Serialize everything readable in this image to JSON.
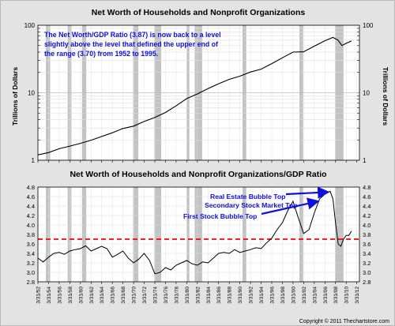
{
  "chart_data": [
    {
      "type": "line",
      "title": "Net Worth of Households and Nonprofit Organizations",
      "ylabel_left": "Trillions of Dollars",
      "ylabel_right": "Trillions of Dollars",
      "yscale": "log",
      "ylim": [
        1,
        100
      ],
      "y_ticks": [
        "1",
        "10",
        "100"
      ],
      "xlim": [
        1952.0,
        2012.5
      ],
      "grid": true,
      "annotation": "The Net Worth/GDP Ratio (3.87) is now back to a level slightly above the level that defined the upper end of the range (3.70) from 1952 to 1995.",
      "annotation_lines": [
        "The Net Worth/GDP Ratio (3.87) is now back to a level",
        "slightly above the level that defined the upper end of",
        "the range (3.70) from 1952 to 1995."
      ],
      "annotation_color": "#1010dd",
      "line_color": "#000000",
      "x": [
        1952,
        1954,
        1956,
        1958,
        1960,
        1962,
        1964,
        1966,
        1968,
        1970,
        1972,
        1974,
        1976,
        1978,
        1980,
        1982,
        1984,
        1986,
        1988,
        1990,
        1992,
        1994,
        1996,
        1998,
        2000,
        2002,
        2004,
        2006,
        2007.5,
        2008.5,
        2009.2,
        2010,
        2011
      ],
      "values": [
        1.2,
        1.3,
        1.48,
        1.62,
        1.78,
        1.98,
        2.25,
        2.55,
        2.95,
        3.2,
        3.75,
        4.3,
        5.1,
        6.4,
        8.2,
        9.6,
        11.5,
        13.6,
        15.8,
        17.6,
        20.3,
        22.4,
        27.0,
        33.0,
        40.0,
        40.5,
        49.0,
        59.0,
        66.0,
        60.0,
        50.0,
        54.0,
        58.5
      ]
    },
    {
      "type": "line",
      "title": "Net Worth of Households and Nonprofit Organizations/GDP Ratio",
      "ylim": [
        2.8,
        4.8
      ],
      "y_ticks": [
        "2.8",
        "3.0",
        "3.2",
        "3.4",
        "3.6",
        "3.8",
        "4.0",
        "4.2",
        "4.4",
        "4.6",
        "4.8"
      ],
      "xlim": [
        1952.0,
        2012.5
      ],
      "grid": true,
      "reference_line": {
        "value": 3.7,
        "style": "dashed",
        "color": "#ff0000"
      },
      "annotations": [
        {
          "text": "Real Estate Bubble Top",
          "points_to": [
            2007.2,
            4.71
          ],
          "color": "#1010dd"
        },
        {
          "text": "Secondary Stock Market Top",
          "points_to": [
            2005.0,
            4.55
          ],
          "color": "#1010dd"
        },
        {
          "text": "First Stock Bubble Top",
          "points_to": [
            1999.8,
            4.5
          ],
          "color": "#1010dd"
        }
      ],
      "x_tick_labels": [
        "3/31/52",
        "3/31/54",
        "3/31/56",
        "3/31/58",
        "3/31/60",
        "3/31/62",
        "3/31/64",
        "3/31/66",
        "3/31/68",
        "3/31/70",
        "3/31/72",
        "3/31/74",
        "3/31/76",
        "3/31/78",
        "3/31/80",
        "3/31/82",
        "3/31/84",
        "3/31/86",
        "3/31/88",
        "3/31/90",
        "3/31/92",
        "3/31/94",
        "3/31/96",
        "3/31/98",
        "3/31/00",
        "3/31/02",
        "3/31/04",
        "3/31/06",
        "3/31/08",
        "3/31/10",
        "3/31/12"
      ],
      "line_color": "#000000",
      "x": [
        1952,
        1953,
        1954,
        1955,
        1956,
        1957,
        1958,
        1959,
        1960,
        1961,
        1962,
        1963,
        1964,
        1965,
        1966,
        1967,
        1968,
        1969,
        1970,
        1971,
        1972,
        1973,
        1974,
        1975,
        1976,
        1977,
        1978,
        1979,
        1980,
        1981,
        1982,
        1983,
        1984,
        1985,
        1986,
        1987,
        1988,
        1989,
        1990,
        1991,
        1992,
        1993,
        1994,
        1995,
        1996,
        1997,
        1998,
        1999,
        2000,
        2001,
        2002,
        2003,
        2004,
        2005,
        2006,
        2006.5,
        2007,
        2007.5,
        2008,
        2008.5,
        2009,
        2009.5,
        2010,
        2010.5,
        2011
      ],
      "values": [
        3.3,
        3.22,
        3.32,
        3.4,
        3.42,
        3.38,
        3.45,
        3.48,
        3.5,
        3.56,
        3.45,
        3.5,
        3.55,
        3.5,
        3.32,
        3.38,
        3.45,
        3.3,
        3.2,
        3.28,
        3.4,
        3.25,
        2.97,
        3.0,
        3.1,
        3.05,
        3.15,
        3.2,
        3.25,
        3.18,
        3.15,
        3.22,
        3.2,
        3.3,
        3.4,
        3.42,
        3.4,
        3.48,
        3.42,
        3.45,
        3.48,
        3.52,
        3.5,
        3.62,
        3.72,
        3.9,
        4.05,
        4.3,
        4.5,
        4.15,
        3.82,
        3.9,
        4.25,
        4.55,
        4.65,
        4.69,
        4.71,
        4.55,
        4.05,
        3.6,
        3.55,
        3.7,
        3.78,
        3.78,
        3.87
      ]
    }
  ],
  "recessions": [
    [
      1953.5,
      1954.3
    ],
    [
      1957.6,
      1958.3
    ],
    [
      1960.3,
      1961.1
    ],
    [
      1969.9,
      1970.9
    ],
    [
      1973.9,
      1975.2
    ],
    [
      1980.0,
      1980.5
    ],
    [
      1981.5,
      1982.9
    ],
    [
      1990.5,
      1991.2
    ],
    [
      2001.2,
      2001.9
    ],
    [
      2007.9,
      2009.5
    ]
  ],
  "recession_color": "#c3c3c3",
  "copyright": "Copyright © 2011 Thechartstore.com"
}
